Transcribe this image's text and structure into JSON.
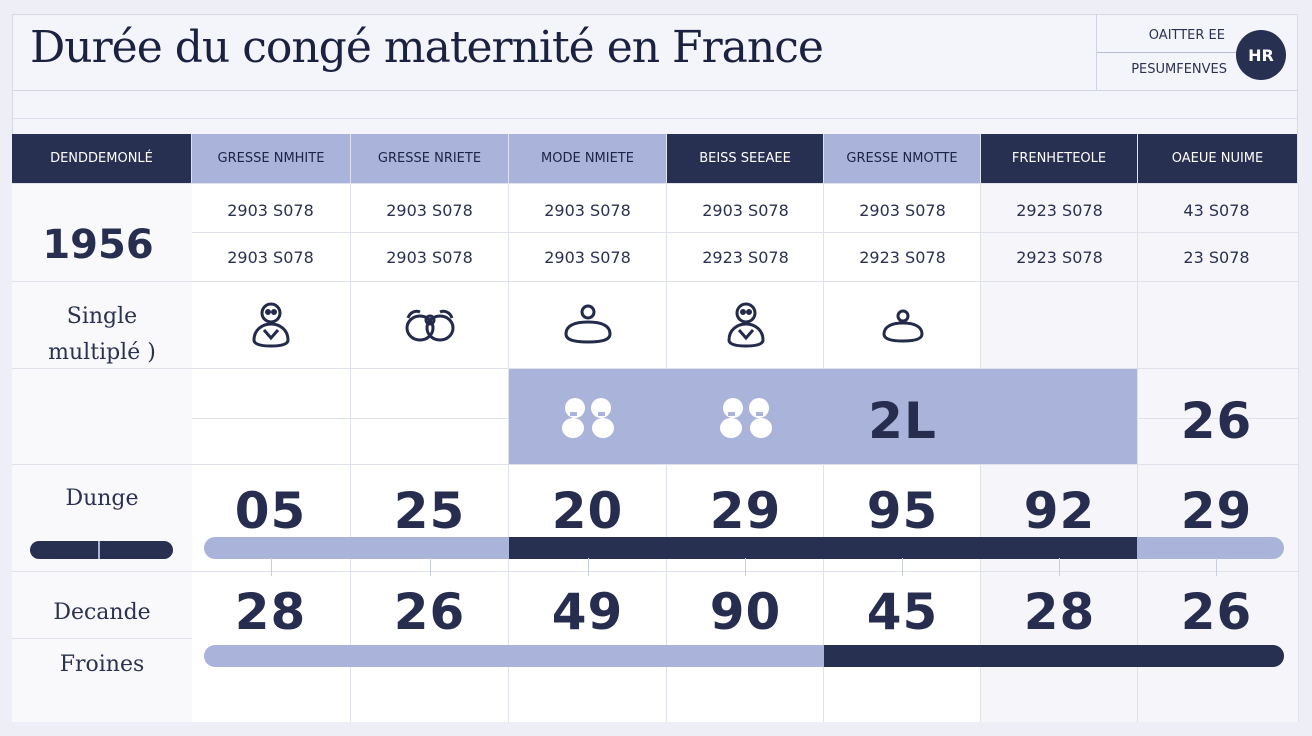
{
  "header": {
    "title": "Durée du congé maternité en France",
    "meta_top": "OAITTER EE",
    "meta_bottom": "PESUMFENVES",
    "avatar_initials": "HR"
  },
  "table": {
    "corner_header": "DENDDEMONLÉ",
    "columns": [
      {
        "label": "GRESSE NMHITE",
        "style": "light"
      },
      {
        "label": "GRESSE NRIETE",
        "style": "light"
      },
      {
        "label": "MODE NMIETE",
        "style": "light"
      },
      {
        "label": "BEISS SEEAEE",
        "style": "dark"
      },
      {
        "label": "GRESSE NMOTTE",
        "style": "light"
      },
      {
        "label": "FRENHETEOLE",
        "style": "dark"
      },
      {
        "label": "OAEUE NUIME",
        "style": "light"
      }
    ],
    "year": "1956",
    "row1": [
      "2903 S078",
      "2903 S078",
      "2903 S078",
      "2903 S078",
      "2903 S078",
      "2923 S078",
      "43 S078"
    ],
    "row2": [
      "2903 S078",
      "2903 S078",
      "2903 S078",
      "2923 S078",
      "2923 S078",
      "2923 S078",
      "23 S078"
    ],
    "label_single": "Single",
    "label_multiple": "multiplé )",
    "icons_row": [
      "baby-icon",
      "twins-icon",
      "bassinet-icon",
      "baby-icon",
      "bassinet-icon",
      "",
      ""
    ],
    "highlight_row": [
      "",
      "",
      "",
      "",
      "2L",
      "",
      "26"
    ],
    "label_dunge": "Dunge",
    "dunge_values": [
      "05",
      "25",
      "20",
      "29",
      "95",
      "92",
      "29"
    ],
    "label_decande": "Decande",
    "label_froines": "Froines",
    "decande_values": [
      "28",
      "26",
      "49",
      "90",
      "45",
      "28",
      "26"
    ]
  },
  "colors": {
    "dark": "#283052",
    "light": "#aab3da",
    "background": "#eeeff6"
  }
}
